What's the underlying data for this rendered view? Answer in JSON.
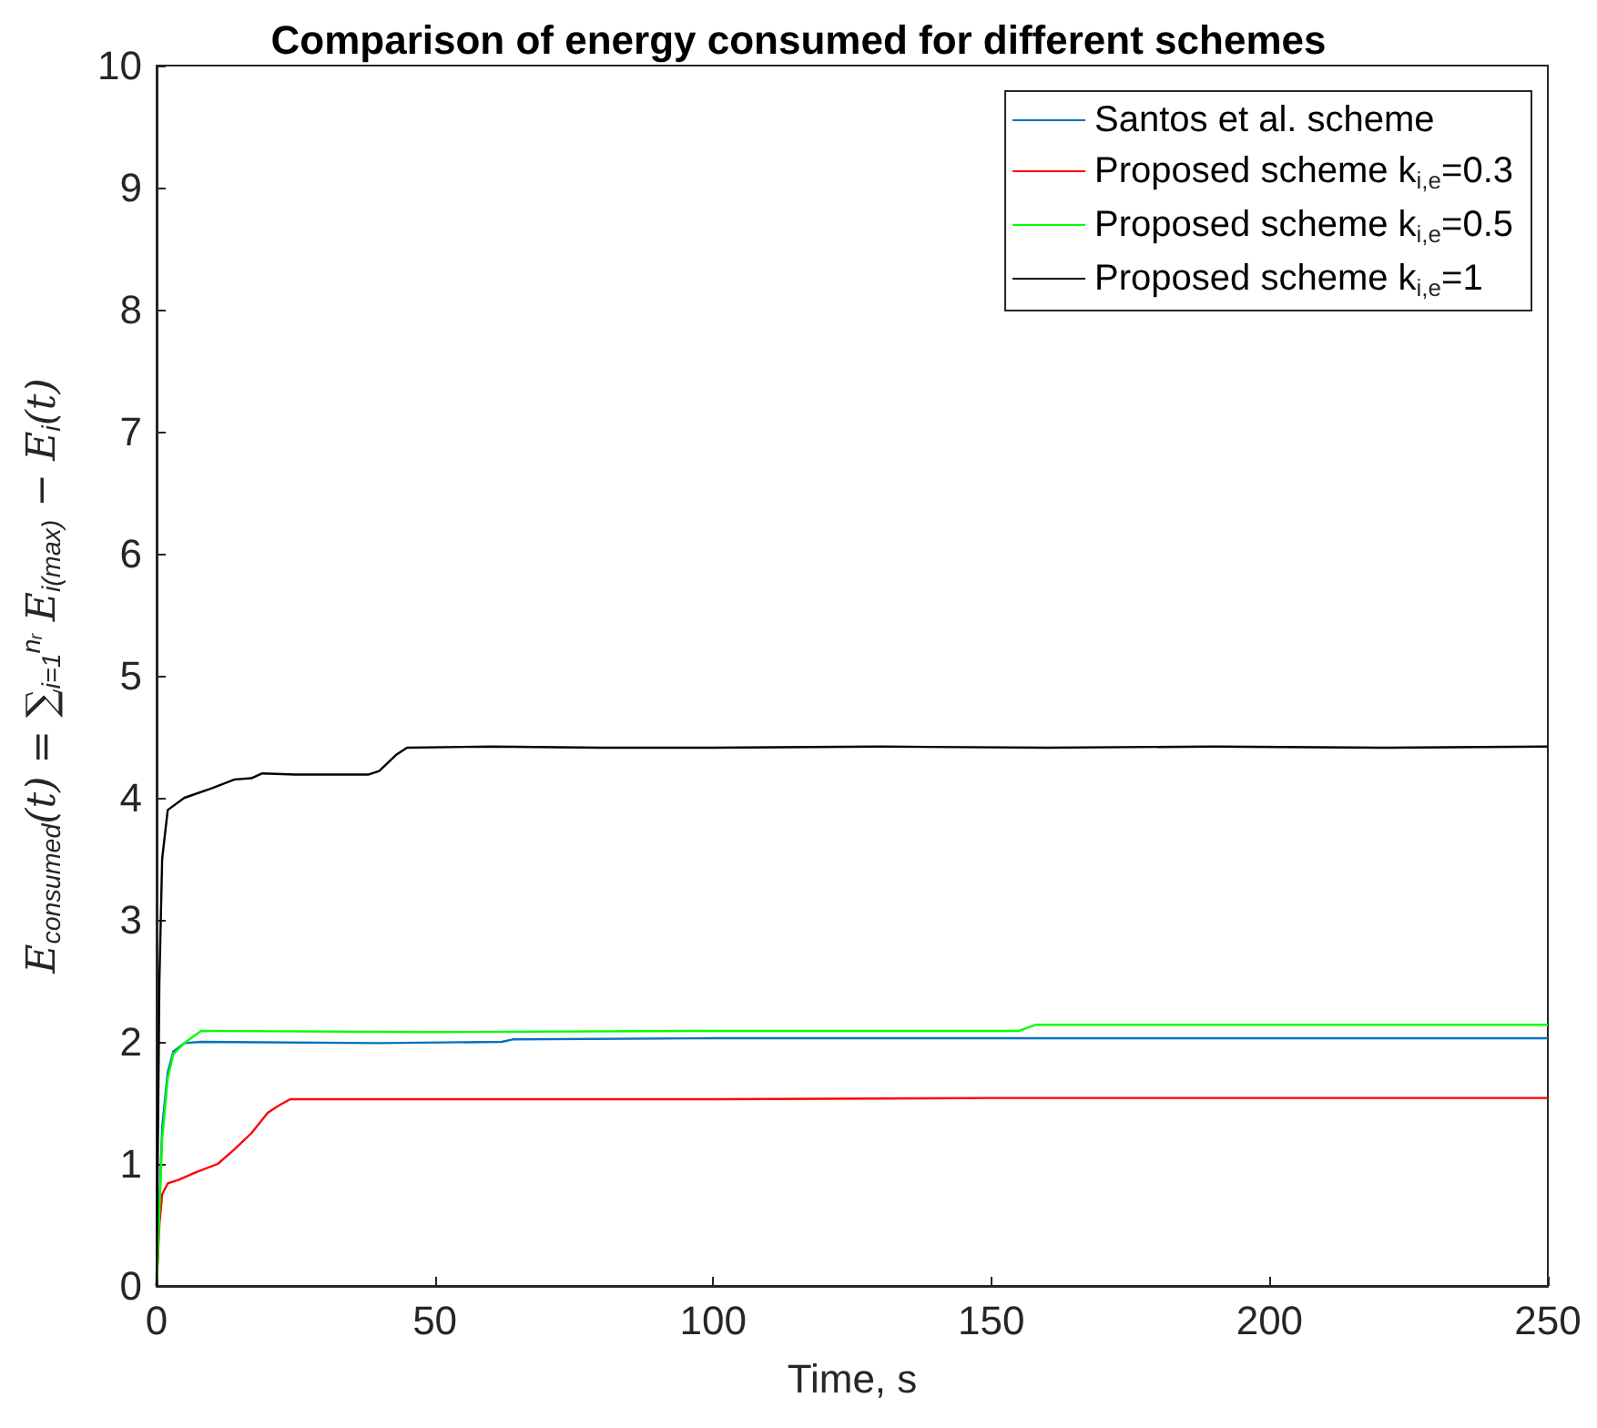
{
  "chart_data": {
    "type": "line",
    "title": "Comparison of energy consumed for different schemes",
    "xlabel": "Time, s",
    "ylabel": "E$_{consumed}$(t) = ∑$_{i=1}$$^{nᵣ}$ E$_{i(max)}$ − E$_{i}$(t)",
    "xlim": [
      0,
      250
    ],
    "xticks": [
      0,
      50,
      100,
      150,
      200,
      250
    ],
    "ylim": [
      0,
      10
    ],
    "yticks": [
      0,
      1,
      2,
      3,
      4,
      5,
      6,
      7,
      8,
      9,
      10
    ],
    "grid": false,
    "legend": "top right",
    "marker": "none",
    "line_style": "solid",
    "series": [
      {
        "name": "Santos et al. scheme",
        "color": "#0072bd",
        "x": [
          0,
          1,
          2,
          3,
          5,
          8,
          40,
          62,
          64,
          100,
          150,
          200,
          250
        ],
        "values": [
          0,
          1.3,
          1.75,
          1.92,
          1.99,
          2.0,
          1.99,
          2.0,
          2.02,
          2.03,
          2.03,
          2.03,
          2.03
        ]
      },
      {
        "name": "Proposed scheme k$_{i,e}$=0.3",
        "color": "#ff0000",
        "x": [
          0,
          0.5,
          1,
          2,
          4,
          7,
          11,
          14,
          17,
          20,
          22,
          24,
          50,
          100,
          150,
          200,
          250
        ],
        "values": [
          0,
          0.5,
          0.75,
          0.84,
          0.87,
          0.93,
          1.0,
          1.12,
          1.25,
          1.42,
          1.48,
          1.53,
          1.53,
          1.53,
          1.54,
          1.54,
          1.54
        ]
      },
      {
        "name": "Proposed scheme k$_{i,e}$=0.5",
        "color": "#00ff00",
        "x": [
          0,
          1,
          2,
          3,
          5,
          8,
          50,
          100,
          155,
          158,
          200,
          250
        ],
        "values": [
          0,
          1.2,
          1.7,
          1.9,
          1.99,
          2.09,
          2.08,
          2.09,
          2.09,
          2.14,
          2.14,
          2.14
        ]
      },
      {
        "name": "Proposed scheme k$_{i,e}$=1",
        "color": "#000000",
        "x": [
          0,
          0.5,
          1,
          2,
          5,
          10,
          14,
          17,
          19,
          25,
          38,
          40,
          43,
          45,
          60,
          80,
          100,
          130,
          160,
          190,
          220,
          250
        ],
        "values": [
          0,
          2.5,
          3.5,
          3.9,
          4.0,
          4.08,
          4.15,
          4.16,
          4.2,
          4.19,
          4.19,
          4.22,
          4.35,
          4.41,
          4.42,
          4.41,
          4.41,
          4.42,
          4.41,
          4.42,
          4.41,
          4.42
        ]
      }
    ]
  }
}
